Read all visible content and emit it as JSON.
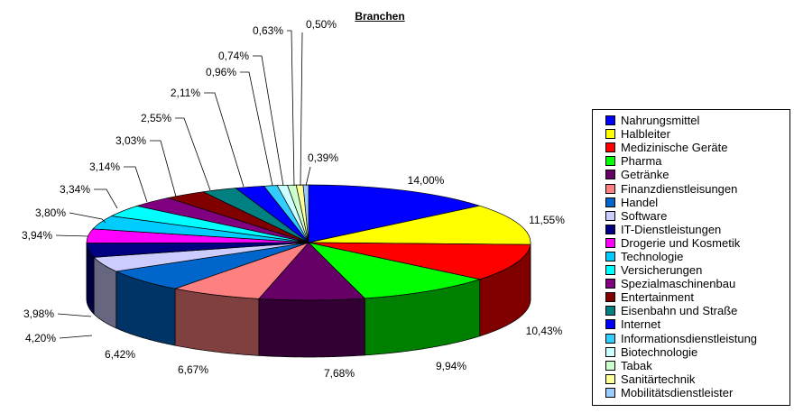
{
  "chart_data": {
    "type": "pie",
    "title": "Branchen",
    "legend_position": "right",
    "slices": [
      {
        "label": "Nahrungsmittel",
        "value": 14.0,
        "display": "14,00%",
        "color": "#0000FF"
      },
      {
        "label": "Halbleiter",
        "value": 11.55,
        "display": "11,55%",
        "color": "#FFFF00"
      },
      {
        "label": "Medizinische Geräte",
        "value": 10.43,
        "display": "10,43%",
        "color": "#FF0000"
      },
      {
        "label": "Pharma",
        "value": 9.94,
        "display": "9,94%",
        "color": "#00FF00"
      },
      {
        "label": "Getränke",
        "value": 7.68,
        "display": "7,68%",
        "color": "#660066"
      },
      {
        "label": "Finanzdienstleisungen",
        "value": 6.67,
        "display": "6,67%",
        "color": "#FF8080"
      },
      {
        "label": "Handel",
        "value": 6.42,
        "display": "6,42%",
        "color": "#0066CC"
      },
      {
        "label": "Software",
        "value": 4.2,
        "display": "4,20%",
        "color": "#CCCCFF"
      },
      {
        "label": "IT-Dienstleistungen",
        "value": 3.98,
        "display": "3,98%",
        "color": "#000080"
      },
      {
        "label": "Drogerie und Kosmetik",
        "value": 3.94,
        "display": "3,94%",
        "color": "#FF00FF"
      },
      {
        "label": "Technologie",
        "value": 3.8,
        "display": "3,80%",
        "color": "#00CCFF"
      },
      {
        "label": "Versicherungen",
        "value": 3.34,
        "display": "3,34%",
        "color": "#00FFFF"
      },
      {
        "label": "Spezialmaschinenbau",
        "value": 3.14,
        "display": "3,14%",
        "color": "#800080"
      },
      {
        "label": "Entertainment",
        "value": 3.03,
        "display": "3,03%",
        "color": "#800000"
      },
      {
        "label": "Eisenbahn und Straße",
        "value": 2.55,
        "display": "2,55%",
        "color": "#008080"
      },
      {
        "label": "Internet",
        "value": 2.11,
        "display": "2,11%",
        "color": "#0000FF"
      },
      {
        "label": "Informationsdienstleistung",
        "value": 0.96,
        "display": "0,96%",
        "color": "#33CCFF"
      },
      {
        "label": "Biotechnologie",
        "value": 0.74,
        "display": "0,74%",
        "color": "#CCFFFF"
      },
      {
        "label": "Tabak",
        "value": 0.63,
        "display": "0,63%",
        "color": "#CCFFCC"
      },
      {
        "label": "Sanitärtechnik",
        "value": 0.5,
        "display": "0,50%",
        "color": "#FFFF99"
      },
      {
        "label": "Mobilitätsdienstleister",
        "value": 0.39,
        "display": "0,39%",
        "color": "#99CCFF"
      }
    ]
  }
}
